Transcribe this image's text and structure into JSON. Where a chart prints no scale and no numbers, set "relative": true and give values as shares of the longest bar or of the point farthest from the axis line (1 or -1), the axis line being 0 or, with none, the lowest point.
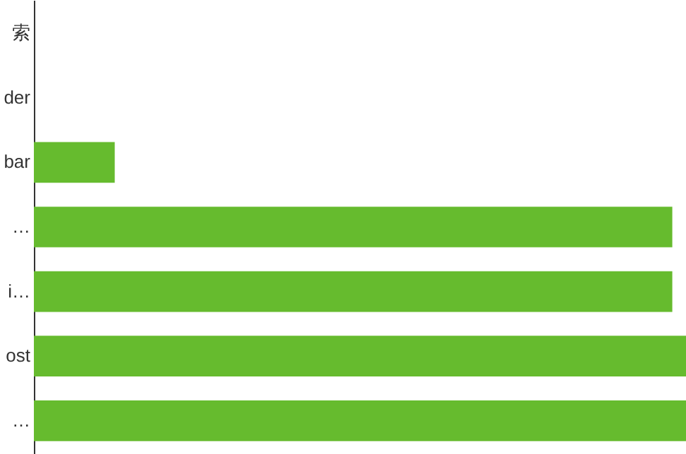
{
  "chart_data": {
    "type": "bar",
    "orientation": "horizontal",
    "relative": true,
    "categories": [
      "索",
      "der",
      "bar",
      "…",
      "i…",
      "ost",
      "…"
    ],
    "values": [
      0,
      0,
      0.124,
      0.979,
      0.979,
      1,
      1
    ],
    "color": "#66bb2e"
  }
}
